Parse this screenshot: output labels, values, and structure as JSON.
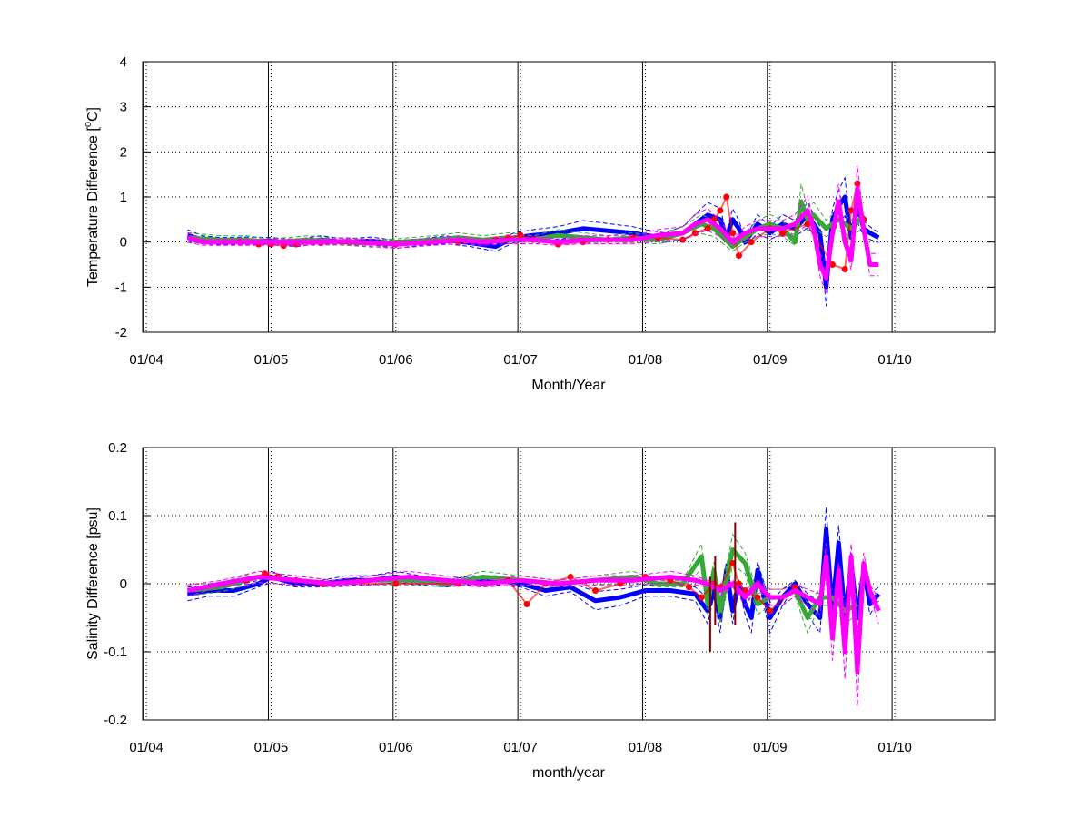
{
  "chart_data": [
    {
      "type": "line",
      "ylabel_prefix": "Temperature Difference [",
      "ylabel_sup": "o",
      "ylabel_suffix": "C]",
      "xlabel": "Month/Year",
      "x_unit": "year",
      "xlim": [
        2003.97,
        2010.8
      ],
      "ylim": [
        -2,
        4
      ],
      "yticks": [
        -2,
        -1,
        0,
        1,
        2,
        3,
        4
      ],
      "ytick_labels": [
        "-2",
        "-1",
        "0",
        "1",
        "2",
        "3",
        "4"
      ],
      "xticks": [
        2004,
        2005,
        2006,
        2007,
        2008,
        2009,
        2010
      ],
      "xtick_labels": [
        "01/04",
        "01/05",
        "01/06",
        "01/07",
        "01/08",
        "01/09",
        "01/10"
      ],
      "grid": true,
      "colors": {
        "blue": "#0000ff",
        "green": "#33aa33",
        "red": "#ff0000",
        "magenta": "#ff00ff",
        "darkred": "#800000"
      },
      "series": [
        {
          "color": "#0000ff",
          "band": true,
          "x": [
            2004.33,
            2004.45,
            2004.6,
            2004.8,
            2005.0,
            2005.2,
            2005.4,
            2005.6,
            2005.8,
            2006.0,
            2006.2,
            2006.4,
            2006.6,
            2006.8,
            2006.95,
            2007.1,
            2007.3,
            2007.5,
            2007.7,
            2007.9,
            2008.0,
            2008.15,
            2008.3,
            2008.4,
            2008.5,
            2008.6,
            2008.65,
            2008.7,
            2008.75,
            2008.8,
            2008.9,
            2009.0,
            2009.1,
            2009.2,
            2009.3,
            2009.4,
            2009.45,
            2009.5,
            2009.55,
            2009.6,
            2009.65,
            2009.7,
            2009.75,
            2009.8,
            2009.87
          ],
          "y": [
            0.15,
            0.05,
            0.02,
            0.03,
            0.02,
            -0.02,
            0.05,
            0.0,
            0.03,
            -0.05,
            0.0,
            0.05,
            -0.02,
            -0.1,
            0.1,
            0.15,
            0.2,
            0.3,
            0.25,
            0.2,
            0.15,
            0.1,
            0.2,
            0.4,
            0.6,
            0.5,
            0.1,
            0.5,
            0.3,
            0.0,
            0.4,
            0.2,
            0.4,
            0.3,
            0.6,
            0.2,
            -1.0,
            0.5,
            0.8,
            1.0,
            0.1,
            0.8,
            0.3,
            0.2,
            0.1
          ]
        },
        {
          "color": "#33aa33",
          "band": true,
          "x": [
            2004.33,
            2004.6,
            2004.8,
            2005.0,
            2005.3,
            2005.6,
            2005.8,
            2006.0,
            2006.3,
            2006.5,
            2006.7,
            2006.9,
            2007.1,
            2007.3,
            2007.5,
            2007.7,
            2007.9,
            2008.1,
            2008.3,
            2008.45,
            2008.55,
            2008.7,
            2008.8,
            2008.9,
            2009.0,
            2009.1,
            2009.2,
            2009.25,
            2009.3,
            2009.35,
            2009.45,
            2009.55,
            2009.65,
            2009.75
          ],
          "y": [
            0.1,
            0.05,
            0.05,
            0.0,
            0.05,
            0.0,
            -0.03,
            0.0,
            0.05,
            0.1,
            0.05,
            0.1,
            0.05,
            0.15,
            0.1,
            0.05,
            0.1,
            0.05,
            0.2,
            0.4,
            0.3,
            -0.1,
            0.1,
            0.3,
            0.4,
            0.3,
            0.0,
            0.9,
            0.5,
            0.6,
            0.3,
            0.5,
            0.3,
            0.6
          ]
        },
        {
          "color": "#ff0000",
          "band": false,
          "markers": true,
          "x": [
            2004.75,
            2004.9,
            2005.0,
            2005.1,
            2005.2,
            2005.4,
            2006.0,
            2006.5,
            2006.8,
            2006.9,
            2007.0,
            2007.1,
            2007.3,
            2007.5,
            2007.7,
            2007.9,
            2008.1,
            2008.3,
            2008.4,
            2008.5,
            2008.55,
            2008.6,
            2008.65,
            2008.7,
            2008.75,
            2008.85,
            2009.0,
            2009.1,
            2009.3,
            2009.5,
            2009.6,
            2009.65,
            2009.7,
            2009.75
          ],
          "y": [
            0.0,
            -0.05,
            -0.05,
            -0.08,
            -0.05,
            -0.02,
            -0.05,
            0.0,
            0.05,
            0.1,
            0.15,
            0.05,
            -0.05,
            0.0,
            0.05,
            0.1,
            0.1,
            0.05,
            0.2,
            0.3,
            0.5,
            0.7,
            1.0,
            0.2,
            -0.3,
            0.0,
            0.3,
            0.2,
            0.4,
            -0.5,
            -0.6,
            0.7,
            1.3,
            0.5
          ]
        },
        {
          "color": "#ff00ff",
          "band": true,
          "x": [
            2004.33,
            2004.45,
            2004.6,
            2004.8,
            2005.0,
            2005.3,
            2005.6,
            2005.8,
            2006.0,
            2006.3,
            2006.5,
            2006.7,
            2006.9,
            2007.1,
            2007.3,
            2007.5,
            2007.7,
            2007.9,
            2008.1,
            2008.3,
            2008.4,
            2008.5,
            2008.6,
            2008.7,
            2008.8,
            2008.9,
            2009.0,
            2009.1,
            2009.2,
            2009.3,
            2009.35,
            2009.4,
            2009.45,
            2009.5,
            2009.55,
            2009.6,
            2009.65,
            2009.7,
            2009.75,
            2009.8,
            2009.87
          ],
          "y": [
            0.1,
            0.0,
            0.0,
            0.0,
            0.0,
            0.0,
            0.02,
            -0.02,
            -0.05,
            0.0,
            0.05,
            0.0,
            0.05,
            0.05,
            0.0,
            0.05,
            0.05,
            0.05,
            0.15,
            0.2,
            0.4,
            0.5,
            0.3,
            0.0,
            0.2,
            0.3,
            0.3,
            0.3,
            0.4,
            0.7,
            0.3,
            -0.5,
            -0.8,
            0.2,
            0.9,
            0.0,
            -0.4,
            1.2,
            0.3,
            -0.5,
            -0.5
          ]
        }
      ]
    },
    {
      "type": "line",
      "ylabel": "Salinity Difference [psu]",
      "xlabel": "month/year",
      "x_unit": "year",
      "xlim": [
        2003.97,
        2010.8
      ],
      "ylim": [
        -0.2,
        0.2
      ],
      "yticks": [
        -0.2,
        -0.1,
        0,
        0.1,
        0.2
      ],
      "ytick_labels": [
        "-0.2",
        "-0.1",
        "0",
        "0.1",
        "0.2"
      ],
      "xticks": [
        2004,
        2005,
        2006,
        2007,
        2008,
        2009,
        2010
      ],
      "xtick_labels": [
        "01/04",
        "01/05",
        "01/06",
        "01/07",
        "01/08",
        "01/09",
        "01/10"
      ],
      "grid": true,
      "series": [
        {
          "color": "#0000ff",
          "band": true,
          "x": [
            2004.33,
            2004.5,
            2004.7,
            2004.9,
            2005.0,
            2005.2,
            2005.4,
            2005.6,
            2005.8,
            2006.0,
            2006.2,
            2006.4,
            2006.6,
            2006.8,
            2007.0,
            2007.2,
            2007.4,
            2007.6,
            2007.8,
            2008.0,
            2008.2,
            2008.4,
            2008.5,
            2008.55,
            2008.6,
            2008.65,
            2008.7,
            2008.75,
            2008.8,
            2008.85,
            2008.9,
            2009.0,
            2009.1,
            2009.2,
            2009.3,
            2009.4,
            2009.45,
            2009.5,
            2009.55,
            2009.6,
            2009.65,
            2009.7,
            2009.75,
            2009.8,
            2009.87
          ],
          "y": [
            -0.015,
            -0.01,
            -0.01,
            0.0,
            0.01,
            0.0,
            0.0,
            0.005,
            0.005,
            0.01,
            0.005,
            0.0,
            0.005,
            0.005,
            0.0,
            -0.01,
            -0.005,
            -0.025,
            -0.02,
            -0.01,
            -0.01,
            -0.015,
            -0.04,
            -0.01,
            -0.05,
            0.02,
            -0.04,
            0.0,
            -0.03,
            -0.05,
            0.02,
            -0.05,
            -0.02,
            0.0,
            -0.03,
            -0.05,
            0.08,
            -0.04,
            0.06,
            -0.05,
            0.03,
            -0.05,
            0.02,
            -0.03,
            -0.015
          ]
        },
        {
          "color": "#33aa33",
          "band": true,
          "x": [
            2004.33,
            2004.6,
            2004.9,
            2005.2,
            2005.5,
            2005.8,
            2006.1,
            2006.4,
            2006.7,
            2007.0,
            2007.3,
            2007.6,
            2007.9,
            2008.1,
            2008.3,
            2008.45,
            2008.5,
            2008.55,
            2008.6,
            2008.7,
            2008.8,
            2008.9,
            2009.0,
            2009.1,
            2009.2,
            2009.3,
            2009.4,
            2009.5,
            2009.6,
            2009.7
          ],
          "y": [
            -0.01,
            -0.005,
            0.01,
            0.005,
            0.0,
            0.005,
            0.005,
            0.0,
            0.01,
            0.005,
            0.0,
            0.005,
            0.01,
            0.0,
            0.0,
            0.04,
            -0.03,
            0.02,
            -0.04,
            0.05,
            0.03,
            -0.03,
            -0.02,
            -0.02,
            -0.01,
            -0.05,
            -0.02,
            -0.02,
            -0.04,
            -0.03
          ]
        },
        {
          "color": "#ff0000",
          "band": false,
          "markers": true,
          "x": [
            2004.8,
            2004.95,
            2005.05,
            2005.2,
            2005.4,
            2006.0,
            2006.5,
            2006.9,
            2007.05,
            2007.2,
            2007.4,
            2007.6,
            2007.8,
            2008.0,
            2008.2,
            2008.35,
            2008.45,
            2008.55,
            2008.6,
            2008.7,
            2008.75,
            2008.8,
            2008.9,
            2009.0,
            2009.2
          ],
          "y": [
            0.005,
            0.015,
            0.01,
            0.005,
            0.0,
            0.0,
            0.0,
            0.005,
            -0.03,
            0.0,
            0.01,
            -0.01,
            0.0,
            0.01,
            0.005,
            -0.005,
            -0.02,
            0.0,
            -0.005,
            0.03,
            0.0,
            -0.01,
            -0.02,
            -0.04,
            -0.005
          ]
        },
        {
          "color": "#ff00ff",
          "band": true,
          "x": [
            2004.33,
            2004.6,
            2004.9,
            2005.2,
            2005.5,
            2005.8,
            2006.1,
            2006.4,
            2006.7,
            2007.0,
            2007.3,
            2007.6,
            2007.9,
            2008.2,
            2008.4,
            2008.5,
            2008.6,
            2008.7,
            2008.8,
            2008.9,
            2009.0,
            2009.1,
            2009.2,
            2009.3,
            2009.4,
            2009.45,
            2009.5,
            2009.55,
            2009.6,
            2009.65,
            2009.7,
            2009.75,
            2009.8,
            2009.87
          ],
          "y": [
            -0.01,
            0.0,
            0.01,
            0.005,
            0.0,
            0.005,
            0.01,
            0.005,
            0.0,
            0.005,
            0.0,
            0.005,
            0.005,
            0.01,
            0.005,
            0.0,
            -0.01,
            0.0,
            -0.02,
            0.0,
            -0.02,
            -0.02,
            -0.01,
            -0.02,
            -0.03,
            0.04,
            -0.08,
            0.02,
            -0.1,
            0.04,
            -0.13,
            0.03,
            -0.01,
            -0.04
          ]
        },
        {
          "color": "#800000",
          "band": false,
          "bars": true,
          "x": [
            2008.52,
            2008.56,
            2008.72
          ],
          "y_low": [
            -0.1,
            -0.06,
            -0.06
          ],
          "y_high": [
            0.01,
            0.04,
            0.09
          ]
        }
      ]
    }
  ]
}
